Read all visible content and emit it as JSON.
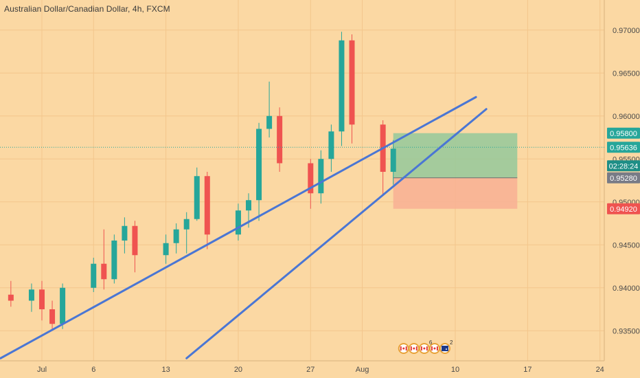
{
  "header": {
    "title": "Australian Dollar/Canadian Dollar, 4h, FXCM"
  },
  "colors": {
    "background": "#fbd8a3",
    "grid": "#f3c68c",
    "up_candle": "#26a69a",
    "down_candle": "#ef5350",
    "trendline": "#4a76d4",
    "profit_zone": "#8fc89a",
    "loss_zone": "#f8b094",
    "label_green": "#26a69a",
    "label_gray": "#787b86",
    "label_red": "#ef5350",
    "label_teal": "#1e8e86"
  },
  "chart_data": {
    "type": "candlestick",
    "symbol": "Australian Dollar/Canadian Dollar",
    "interval": "4h",
    "source": "FXCM",
    "x_tick_labels": [
      "Jul",
      "6",
      "13",
      "20",
      "27",
      "Aug",
      "10",
      "17",
      "24"
    ],
    "y_tick_labels": [
      "0.93500",
      "0.94000",
      "0.94500",
      "0.95000",
      "0.95500",
      "0.96000",
      "0.96500",
      "0.97000"
    ],
    "ylim": [
      0.9315,
      0.9735
    ],
    "grid": true,
    "candles": [
      {
        "date": "Jun 28",
        "open": 0.9392,
        "high": 0.9408,
        "low": 0.9378,
        "close": 0.9385
      },
      {
        "date": "Jun 30",
        "open": 0.9385,
        "high": 0.9405,
        "low": 0.9372,
        "close": 0.9398
      },
      {
        "date": "Jul 1",
        "open": 0.9398,
        "high": 0.9408,
        "low": 0.9362,
        "close": 0.9375
      },
      {
        "date": "Jul 2",
        "open": 0.9375,
        "high": 0.9385,
        "low": 0.935,
        "close": 0.9358
      },
      {
        "date": "Jul 3",
        "open": 0.9358,
        "high": 0.9405,
        "low": 0.9352,
        "close": 0.94
      },
      {
        "date": "Jul 6",
        "open": 0.94,
        "high": 0.9435,
        "low": 0.9395,
        "close": 0.9428
      },
      {
        "date": "Jul 7",
        "open": 0.9428,
        "high": 0.9468,
        "low": 0.9398,
        "close": 0.941
      },
      {
        "date": "Jul 8",
        "open": 0.941,
        "high": 0.9462,
        "low": 0.9405,
        "close": 0.9455
      },
      {
        "date": "Jul 9",
        "open": 0.9455,
        "high": 0.9482,
        "low": 0.944,
        "close": 0.9472
      },
      {
        "date": "Jul 10",
        "open": 0.9472,
        "high": 0.9478,
        "low": 0.9418,
        "close": 0.9438
      },
      {
        "date": "Jul 13",
        "open": 0.9438,
        "high": 0.9462,
        "low": 0.9428,
        "close": 0.9452
      },
      {
        "date": "Jul 14",
        "open": 0.9452,
        "high": 0.9475,
        "low": 0.944,
        "close": 0.9468
      },
      {
        "date": "Jul 15",
        "open": 0.9468,
        "high": 0.9488,
        "low": 0.944,
        "close": 0.948
      },
      {
        "date": "Jul 16",
        "open": 0.948,
        "high": 0.954,
        "low": 0.9478,
        "close": 0.953
      },
      {
        "date": "Jul 17",
        "open": 0.953,
        "high": 0.9535,
        "low": 0.9445,
        "close": 0.9462
      },
      {
        "date": "Jul 20",
        "open": 0.9462,
        "high": 0.9498,
        "low": 0.9455,
        "close": 0.949
      },
      {
        "date": "Jul 21",
        "open": 0.949,
        "high": 0.951,
        "low": 0.947,
        "close": 0.9502
      },
      {
        "date": "Jul 22",
        "open": 0.9502,
        "high": 0.9592,
        "low": 0.9478,
        "close": 0.9585
      },
      {
        "date": "Jul 23",
        "open": 0.9585,
        "high": 0.964,
        "low": 0.9575,
        "close": 0.96
      },
      {
        "date": "Jul 24",
        "open": 0.96,
        "high": 0.961,
        "low": 0.9535,
        "close": 0.9545
      },
      {
        "date": "Jul 27",
        "open": 0.9545,
        "high": 0.955,
        "low": 0.9492,
        "close": 0.951
      },
      {
        "date": "Jul 28",
        "open": 0.951,
        "high": 0.956,
        "low": 0.9498,
        "close": 0.955
      },
      {
        "date": "Jul 29",
        "open": 0.955,
        "high": 0.959,
        "low": 0.9535,
        "close": 0.9582
      },
      {
        "date": "Jul 30",
        "open": 0.9582,
        "high": 0.9698,
        "low": 0.9565,
        "close": 0.9688
      },
      {
        "date": "Jul 31",
        "open": 0.9688,
        "high": 0.9695,
        "low": 0.9568,
        "close": 0.959
      },
      {
        "date": "Aug 3",
        "open": 0.959,
        "high": 0.9595,
        "low": 0.9508,
        "close": 0.9535
      },
      {
        "date": "Aug 4",
        "open": 0.9535,
        "high": 0.9572,
        "low": 0.952,
        "close": 0.9562
      }
    ],
    "trendlines": [
      {
        "from": {
          "date": "Jun 27",
          "price": 0.9318
        },
        "to": {
          "date": "Aug 12",
          "price": 0.9622
        }
      },
      {
        "from": {
          "date": "Jul 15",
          "price": 0.9318
        },
        "to": {
          "date": "Aug 13",
          "price": 0.9608
        }
      }
    ],
    "position": {
      "start_date": "Aug 4",
      "end_date": "Aug 16",
      "entry": 0.9528,
      "target": 0.958,
      "stop": 0.9492
    },
    "current_price": 0.95636,
    "price_labels": [
      {
        "text": "0.95800",
        "price": 0.958,
        "color": "label_green"
      },
      {
        "text": "0.95636",
        "price": 0.95636,
        "color": "label_green"
      },
      {
        "text": "02:28:24",
        "price": 0.9542,
        "color": "label_teal"
      },
      {
        "text": "0.95280",
        "price": 0.9528,
        "color": "label_gray"
      },
      {
        "text": "0.94920",
        "price": 0.9492,
        "color": "label_red"
      }
    ],
    "events": [
      {
        "date": "Aug 5",
        "type": "ca-flag-icon",
        "count": ""
      },
      {
        "date": "Aug 6",
        "type": "ca-flag-icon",
        "count": ""
      },
      {
        "date": "Aug 7",
        "type": "ca-flag-icon",
        "count": "6"
      },
      {
        "date": "Aug 8",
        "type": "ca-flag-icon",
        "count": ""
      },
      {
        "date": "Aug 9",
        "type": "au-flag-icon",
        "count": "2"
      }
    ]
  }
}
